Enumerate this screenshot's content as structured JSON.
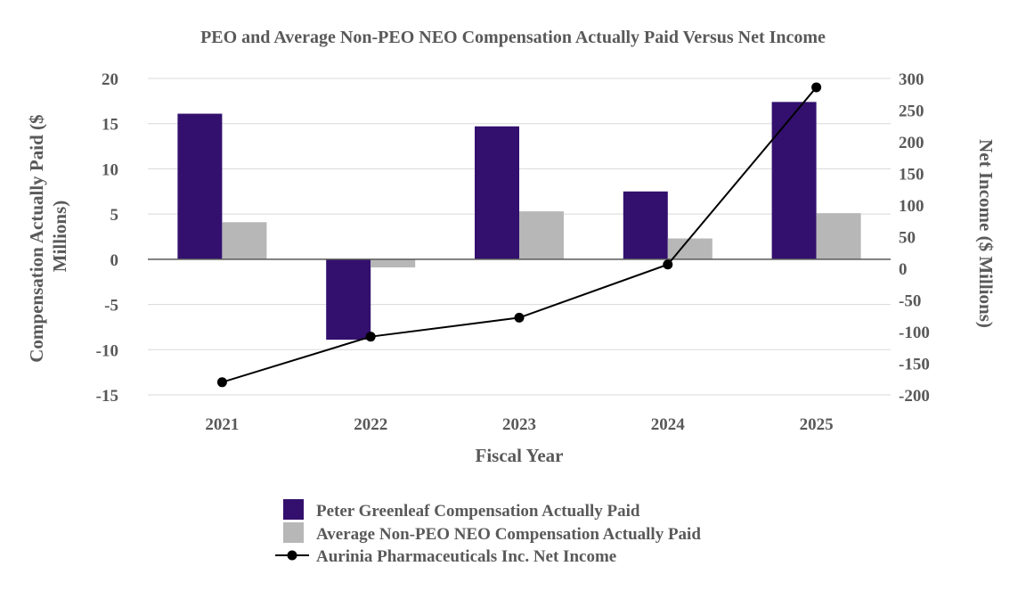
{
  "chart_data": {
    "type": "bar+line",
    "title": "PEO and Average Non-PEO NEO Compensation Actually Paid Versus Net Income",
    "xlabel": "Fiscal Year",
    "ylabel": "Compensation Actually Paid ($ Millions)",
    "y2label": "Net Income ($ Millions)",
    "categories": [
      "2021",
      "2022",
      "2023",
      "2024",
      "2025"
    ],
    "ylim": [
      -15,
      20
    ],
    "y2lim": [
      -200,
      300
    ],
    "yticks": [
      "20",
      "15",
      "10",
      "5",
      "0",
      "-5",
      "-10",
      "-15"
    ],
    "y2ticks": [
      "300",
      "250",
      "200",
      "150",
      "100",
      "50",
      "0",
      "-50",
      "-100",
      "-150",
      "-200"
    ],
    "grid": true,
    "legend_position": "bottom",
    "series": [
      {
        "name": "Peter Greenleaf Compensation Actually Paid",
        "type": "bar",
        "axis": "left",
        "color": "#33106e",
        "values": [
          16.1,
          -8.9,
          14.7,
          7.5,
          17.4
        ]
      },
      {
        "name": "Average Non-PEO NEO Compensation Actually Paid",
        "type": "bar",
        "axis": "left",
        "color": "#b7b7b7",
        "values": [
          4.1,
          -0.9,
          5.3,
          2.3,
          5.1
        ]
      },
      {
        "name": "Aurinia Pharmaceuticals Inc. Net Income",
        "type": "line",
        "axis": "right",
        "color": "#000000",
        "values": [
          -180,
          -108,
          -78,
          6,
          286
        ]
      }
    ]
  }
}
